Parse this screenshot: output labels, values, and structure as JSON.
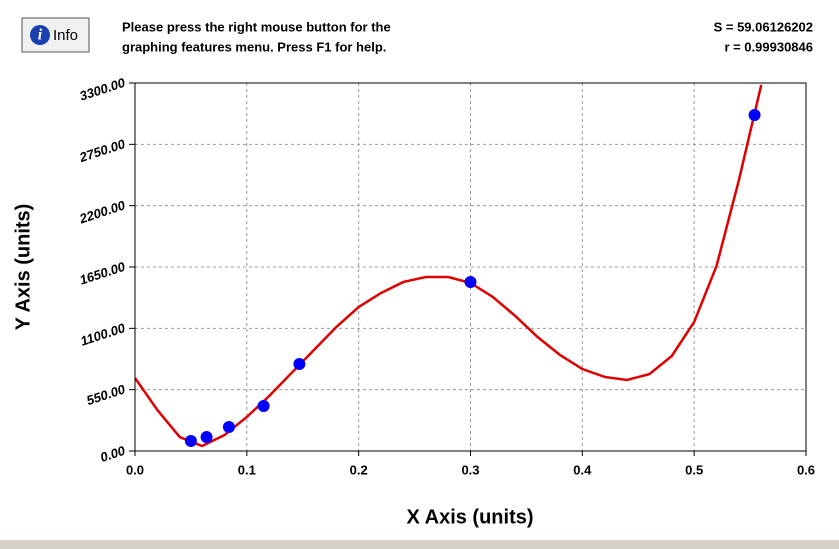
{
  "header": {
    "button": "Info",
    "message": [
      "Please press the right mouse button for the",
      "graphing features menu.  Press F1 for help."
    ],
    "stats": [
      "S = 59.06126202",
      "r = 0.99930846"
    ]
  },
  "chart_data": {
    "type": "scatter",
    "x_label": "X Axis (units)",
    "y_label": "Y Axis (units)",
    "xlim": [
      0,
      0.6
    ],
    "ylim": [
      0,
      3300
    ],
    "xticks": [
      {
        "value": 0,
        "label": "0.0"
      },
      0.1,
      0.2,
      0.3,
      0.4,
      0.5,
      0.6
    ],
    "yticks": [
      {
        "value": 0,
        "label": "0.00"
      },
      {
        "value": 550,
        "label": "550.00"
      },
      {
        "value": 1100,
        "label": "1100.00"
      },
      {
        "value": 1650,
        "label": "1650.00"
      },
      {
        "value": 2200,
        "label": "2200.00"
      },
      {
        "value": 2750,
        "label": "2750.00"
      },
      {
        "value": 3300,
        "label": "3300.00"
      }
    ],
    "grid": true,
    "points": {
      "color": "#0000ff",
      "x": [
        0.05,
        0.064,
        0.084,
        0.115,
        0.147,
        0.3,
        0.554
      ],
      "values": [
        90,
        125,
        215,
        404,
        780,
        1515,
        3013
      ]
    },
    "fit": {
      "color": "#e00000",
      "x": [
        0,
        0.02,
        0.04,
        0.06,
        0.08,
        0.1,
        0.12,
        0.14,
        0.16,
        0.18,
        0.2,
        0.22,
        0.24,
        0.26,
        0.28,
        0.3,
        0.32,
        0.34,
        0.36,
        0.38,
        0.4,
        0.42,
        0.44,
        0.46,
        0.48,
        0.5,
        0.52,
        0.54,
        0.56
      ],
      "values": [
        655,
        368,
        125,
        45,
        143,
        305,
        493,
        700,
        906,
        1112,
        1291,
        1417,
        1516,
        1560,
        1560,
        1507,
        1381,
        1211,
        1022,
        861,
        735,
        664,
        637,
        690,
        852,
        1157,
        1659,
        2430,
        3283
      ]
    }
  }
}
